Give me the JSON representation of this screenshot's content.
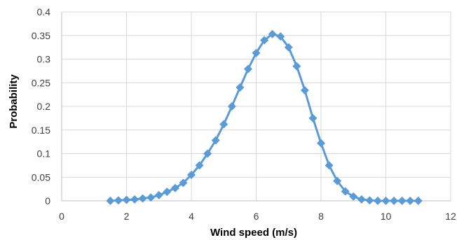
{
  "chart_data": {
    "type": "line",
    "title": "",
    "xlabel": "Wind speed (m/s)",
    "ylabel": "Probability",
    "xlim": [
      0,
      12
    ],
    "ylim": [
      0,
      0.4
    ],
    "x_ticks": [
      "0",
      "2",
      "4",
      "6",
      "8",
      "10",
      "12"
    ],
    "y_ticks": [
      "0",
      "0.05",
      "0.1",
      "0.15",
      "0.2",
      "0.25",
      "0.3",
      "0.35",
      "0.4"
    ],
    "grid": true,
    "legend": "none",
    "colors": {
      "series": "#5b9bd5",
      "grid": "#d9d9d9",
      "axis": "#bfbfbf"
    },
    "marker": "diamond",
    "series": [
      {
        "x": [
          1.5,
          1.75,
          2.0,
          2.25,
          2.5,
          2.75,
          3.0,
          3.25,
          3.5,
          3.75,
          4.0,
          4.25,
          4.5,
          4.75,
          5.0,
          5.25,
          5.5,
          5.75,
          6.0,
          6.25,
          6.5,
          6.75,
          7.0,
          7.25,
          7.5,
          7.75,
          8.0,
          8.25,
          8.5,
          8.75,
          9.0,
          9.25,
          9.5,
          9.75,
          10.0,
          10.25,
          10.5,
          10.75,
          11.0
        ],
        "values": [
          0.0,
          0.001,
          0.002,
          0.003,
          0.005,
          0.007,
          0.012,
          0.019,
          0.027,
          0.038,
          0.055,
          0.075,
          0.1,
          0.128,
          0.162,
          0.2,
          0.24,
          0.279,
          0.313,
          0.34,
          0.353,
          0.348,
          0.325,
          0.285,
          0.234,
          0.175,
          0.122,
          0.075,
          0.042,
          0.02,
          0.009,
          0.003,
          0.001,
          0.0,
          0.0,
          0.0,
          0.0,
          0.0,
          0.0
        ]
      }
    ]
  }
}
